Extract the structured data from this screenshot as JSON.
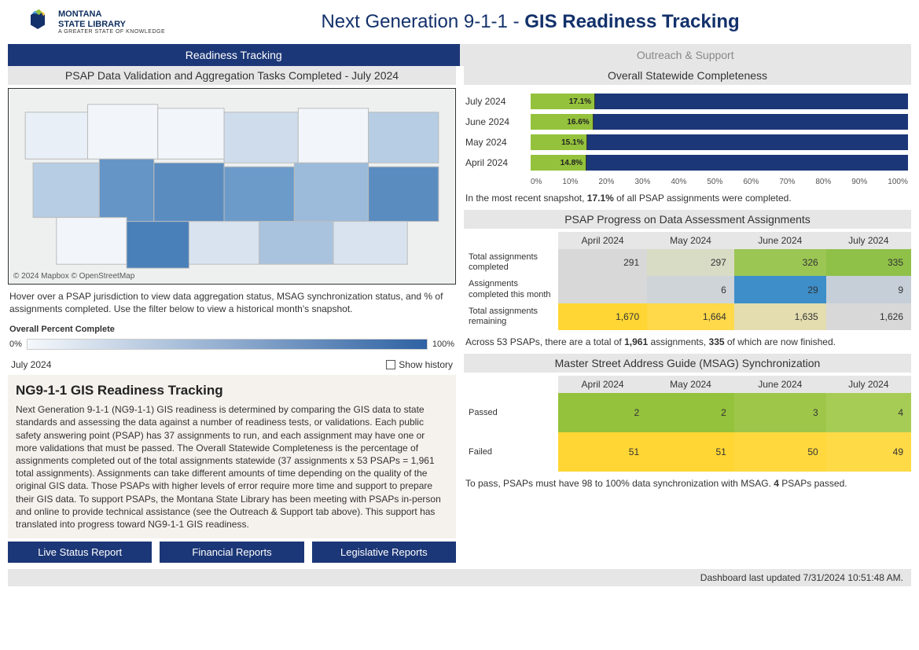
{
  "header": {
    "logo_main": "MONTANA",
    "logo_bold": "STATE LIBRARY",
    "logo_sub": "A GREATER STATE OF KNOWLEDGE",
    "title_prefix": "Next Generation 9-1-1 - ",
    "title_bold": "GIS Readiness Tracking"
  },
  "tabs": {
    "active": "Readiness Tracking",
    "inactive": "Outreach & Support"
  },
  "map": {
    "title": "PSAP Data Validation and Aggregation Tasks Completed - July 2024",
    "attribution": "© 2024 Mapbox © OpenStreetMap",
    "note": "Hover over a PSAP jurisdiction to view data aggregation status, MSAG synchronization status, and % of assignments completed. Use the filter below to view a historical month's snapshot.",
    "legend_title": "Overall Percent Complete",
    "legend_min": "0%",
    "legend_max": "100%",
    "month": "July 2024",
    "show_history": "Show history"
  },
  "explain": {
    "title": "NG9-1-1 GIS Readiness Tracking",
    "body": "Next Generation 9-1-1 (NG9-1-1) GIS readiness is determined by comparing the GIS data to state standards and assessing the data against a number of readiness tests, or validations. Each public safety answering point (PSAP) has 37 assignments to run, and each assignment may have one or more validations that must be passed. The Overall Statewide Completeness is the percentage of assignments completed out of the total assignments statewide (37 assignments x 53 PSAPs = 1,961 total assignments). Assignments can take different amounts of time depending on the quality of the original GIS data. Those PSAPs with higher levels of error require more time and support to prepare their GIS data. To support PSAPs, the Montana State Library has been meeting with PSAPs in-person and online to provide technical assistance (see the Outreach & Support tab above).  This support has translated into progress toward NG9-1-1 GIS readiness."
  },
  "buttons": {
    "live": "Live Status Report",
    "fin": "Financial Reports",
    "leg": "Legislative Reports"
  },
  "completeness": {
    "title": "Overall Statewide Completeness",
    "rows": [
      {
        "label": "July 2024",
        "pct": 17.1,
        "pct_label": "17.1%"
      },
      {
        "label": "June 2024",
        "pct": 16.6,
        "pct_label": "16.6%"
      },
      {
        "label": "May 2024",
        "pct": 15.1,
        "pct_label": "15.1%"
      },
      {
        "label": "April 2024",
        "pct": 14.8,
        "pct_label": "14.8%"
      }
    ],
    "axis": [
      "0%",
      "10%",
      "20%",
      "30%",
      "40%",
      "50%",
      "60%",
      "70%",
      "80%",
      "90%",
      "100%"
    ],
    "summary_prefix": "In the most recent snapshot, ",
    "summary_bold": "17.1%",
    "summary_suffix": " of all PSAP assignments were completed.",
    "colors": {
      "fill": "#94c23c",
      "track": "#1c3777"
    }
  },
  "progress": {
    "title": "PSAP Progress on Data Assessment Assignments",
    "cols": [
      "April 2024",
      "May 2024",
      "June 2024",
      "July 2024"
    ],
    "rows": [
      {
        "label": "Total assignments completed",
        "cells": [
          {
            "v": "291",
            "bg": "#d8d8d8"
          },
          {
            "v": "297",
            "bg": "#d8dcc5"
          },
          {
            "v": "326",
            "bg": "#9cc653"
          },
          {
            "v": "335",
            "bg": "#8fc048"
          }
        ]
      },
      {
        "label": "Assignments completed this month",
        "cells": [
          {
            "v": "",
            "bg": "#d8d8d8"
          },
          {
            "v": "6",
            "bg": "#cfd4d9"
          },
          {
            "v": "29",
            "bg": "#3d8ec9"
          },
          {
            "v": "9",
            "bg": "#c6cfd8"
          }
        ]
      },
      {
        "label": "Total assignments remaining",
        "cells": [
          {
            "v": "1,670",
            "bg": "#ffd633"
          },
          {
            "v": "1,664",
            "bg": "#ffd94a"
          },
          {
            "v": "1,635",
            "bg": "#e3ddb0"
          },
          {
            "v": "1,626",
            "bg": "#d8d8d8"
          }
        ]
      }
    ],
    "summary_prefix": "Across 53 PSAPs, there are a total of ",
    "summary_bold1": "1,961",
    "summary_mid": " assignments, ",
    "summary_bold2": "335",
    "summary_suffix": " of which are now finished."
  },
  "msag": {
    "title": "Master Street Address Guide (MSAG) Synchronization",
    "cols": [
      "April 2024",
      "May 2024",
      "June 2024",
      "July 2024"
    ],
    "rows": [
      {
        "label": "Passed",
        "cells": [
          {
            "v": "2",
            "bg": "#94c23c"
          },
          {
            "v": "2",
            "bg": "#94c23c"
          },
          {
            "v": "3",
            "bg": "#9ec749"
          },
          {
            "v": "4",
            "bg": "#a7cc55"
          }
        ]
      },
      {
        "label": "Failed",
        "cells": [
          {
            "v": "51",
            "bg": "#ffd633"
          },
          {
            "v": "51",
            "bg": "#ffd633"
          },
          {
            "v": "50",
            "bg": "#ffd83d"
          },
          {
            "v": "49",
            "bg": "#ffda47"
          }
        ]
      }
    ],
    "summary_prefix": "To pass, PSAPs must have 98 to 100% data synchronization with MSAG. ",
    "summary_bold": "4",
    "summary_suffix": " PSAPs passed."
  },
  "footer": {
    "text": "Dashboard last updated 7/31/2024 10:51:48 AM."
  }
}
